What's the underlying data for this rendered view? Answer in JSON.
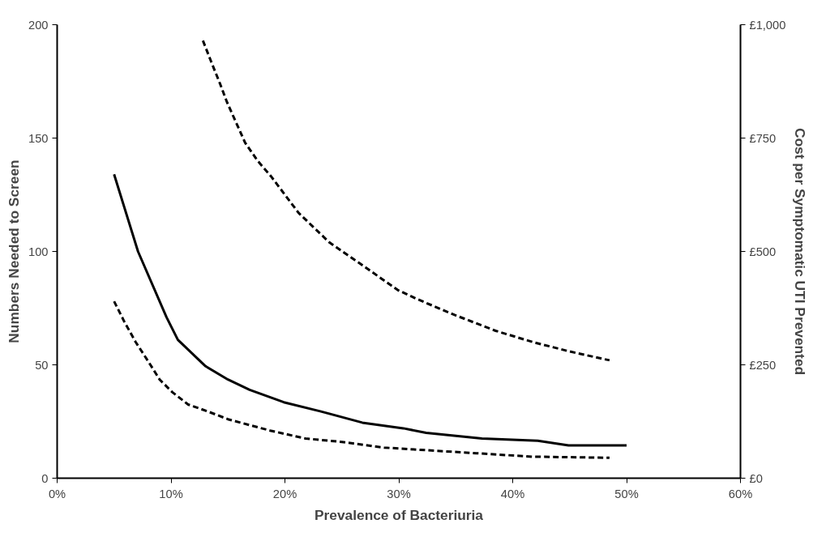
{
  "chart_data": {
    "type": "line",
    "xlabel": "Prevalence of Bacteriuria",
    "ylabel": "Numbers Needed to Screen",
    "y2label": "Cost per Symptomatic UTI Prevented",
    "xlim": [
      0,
      60
    ],
    "xticks": [
      {
        "value": 0,
        "label": "0%"
      },
      {
        "value": 10,
        "label": "10%"
      },
      {
        "value": 20,
        "label": "20%"
      },
      {
        "value": 30,
        "label": "30%"
      },
      {
        "value": 40,
        "label": "40%"
      },
      {
        "value": 50,
        "label": "50%"
      },
      {
        "value": 60,
        "label": "60%"
      }
    ],
    "ylim": [
      0,
      200
    ],
    "yticks": [
      0,
      50,
      100,
      150,
      200
    ],
    "y2lim": [
      0,
      1000
    ],
    "y2ticks": [
      {
        "value": 0,
        "label": "£0"
      },
      {
        "value": 250,
        "label": "£250"
      },
      {
        "value": 500,
        "label": "£500"
      },
      {
        "value": 750,
        "label": "£750"
      },
      {
        "value": 1000,
        "label": "£1,000"
      }
    ],
    "grid": false,
    "marker": "none",
    "series": [
      {
        "color": "#000000",
        "line_style": "solid",
        "x": [
          5,
          7.1,
          9.6,
          10.6,
          13.0,
          15.0,
          16.9,
          19.9,
          23.1,
          26.8,
          30.4,
          32.4,
          37.3,
          42.2,
          44.9,
          50
        ],
        "values": [
          134,
          100,
          71,
          61,
          49.5,
          43.5,
          39,
          33.5,
          29.5,
          24.5,
          22,
          20,
          17.5,
          16.5,
          14.5,
          14.5
        ]
      },
      {
        "color": "#000000",
        "line_style": "dashed",
        "x": [
          5,
          5.9,
          6.9,
          8.0,
          9.0,
          10.1,
          11.5,
          13.2,
          15.0,
          18.7,
          21.8,
          25.0,
          28.7,
          31.9,
          36.8,
          41.7,
          48.5
        ],
        "values": [
          78,
          69,
          60,
          51.5,
          43.5,
          38,
          32.5,
          29.5,
          26,
          21,
          17.5,
          16,
          13.5,
          12.5,
          11,
          9.5,
          9
        ]
      },
      {
        "color": "#000000",
        "line_style": "dashed",
        "axis": "y2",
        "x": [
          12.8,
          13.5,
          14.3,
          14.9,
          15.7,
          16.5,
          17.6,
          18.8,
          21.2,
          23.9,
          26.5,
          29.9,
          31.6,
          34.9,
          38.5,
          41.8,
          44.9,
          48.5
        ],
        "values": [
          965,
          920,
          870,
          830,
          785,
          740,
          700,
          665,
          585,
          520,
          475,
          415,
          395,
          360,
          325,
          300,
          280,
          260
        ]
      }
    ]
  }
}
